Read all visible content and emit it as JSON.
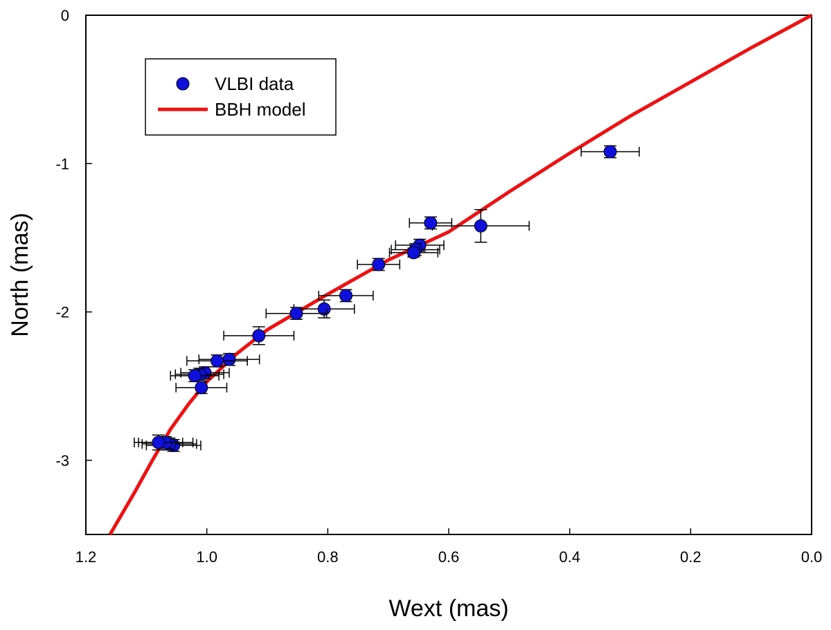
{
  "chart_data": {
    "type": "scatter",
    "title": "",
    "xlabel": "Wext (mas)",
    "ylabel": "North (mas)",
    "xlim": [
      1.2,
      0.0
    ],
    "ylim": [
      -3.5,
      0
    ],
    "x_reversed": true,
    "x_ticks": [
      1.2,
      1.0,
      0.8,
      0.6,
      0.4,
      0.2,
      0.0
    ],
    "x_tick_labels": [
      "1.2",
      "1.0",
      "0.8",
      "0.6",
      "0.4",
      "0.2",
      "0.0"
    ],
    "y_ticks": [
      0,
      -1,
      -2,
      -3
    ],
    "y_tick_labels": [
      "0",
      "-1",
      "-2",
      "-3"
    ],
    "grid": false,
    "legend_position": "top-left",
    "series": [
      {
        "name": "VLBI data",
        "kind": "points_with_errorbars",
        "color": "#1010dd",
        "points": [
          {
            "x": 0.333,
            "y": -0.92,
            "xerr": 0.048,
            "yerr": 0.04
          },
          {
            "x": 0.547,
            "y": -1.42,
            "xerr": 0.08,
            "yerr": 0.11
          },
          {
            "x": 0.63,
            "y": -1.4,
            "xerr": 0.035,
            "yerr": 0.04
          },
          {
            "x": 0.648,
            "y": -1.55,
            "xerr": 0.04,
            "yerr": 0.04
          },
          {
            "x": 0.655,
            "y": -1.58,
            "xerr": 0.04,
            "yerr": 0.04
          },
          {
            "x": 0.658,
            "y": -1.6,
            "xerr": 0.04,
            "yerr": 0.03
          },
          {
            "x": 0.716,
            "y": -1.68,
            "xerr": 0.035,
            "yerr": 0.04
          },
          {
            "x": 0.77,
            "y": -1.89,
            "xerr": 0.045,
            "yerr": 0.04
          },
          {
            "x": 0.806,
            "y": -1.98,
            "xerr": 0.05,
            "yerr": 0.06
          },
          {
            "x": 0.852,
            "y": -2.01,
            "xerr": 0.05,
            "yerr": 0.04
          },
          {
            "x": 0.914,
            "y": -2.16,
            "xerr": 0.058,
            "yerr": 0.06
          },
          {
            "x": 0.963,
            "y": -2.32,
            "xerr": 0.05,
            "yerr": 0.04
          },
          {
            "x": 0.983,
            "y": -2.33,
            "xerr": 0.05,
            "yerr": 0.04
          },
          {
            "x": 1.003,
            "y": -2.41,
            "xerr": 0.04,
            "yerr": 0.04
          },
          {
            "x": 1.012,
            "y": -2.42,
            "xerr": 0.04,
            "yerr": 0.04
          },
          {
            "x": 1.02,
            "y": -2.43,
            "xerr": 0.04,
            "yerr": 0.04
          },
          {
            "x": 1.009,
            "y": -2.51,
            "xerr": 0.042,
            "yerr": 0.04
          },
          {
            "x": 1.055,
            "y": -2.9,
            "xerr": 0.045,
            "yerr": 0.04
          },
          {
            "x": 1.062,
            "y": -2.89,
            "xerr": 0.045,
            "yerr": 0.04
          },
          {
            "x": 1.068,
            "y": -2.88,
            "xerr": 0.045,
            "yerr": 0.04
          },
          {
            "x": 1.08,
            "y": -2.88,
            "xerr": 0.04,
            "yerr": 0.05
          }
        ]
      },
      {
        "name": "BBH model",
        "kind": "line",
        "color": "#ee1111",
        "x": [
          0.0,
          0.1,
          0.2,
          0.3,
          0.4,
          0.5,
          0.6,
          0.7,
          0.8,
          0.9,
          0.95,
          1.0,
          1.03,
          1.06,
          1.09,
          1.12,
          1.16
        ],
        "y": [
          0.0,
          -0.22,
          -0.45,
          -0.68,
          -0.93,
          -1.19,
          -1.46,
          -1.65,
          -1.88,
          -2.12,
          -2.28,
          -2.47,
          -2.62,
          -2.79,
          -3.0,
          -3.22,
          -3.5
        ]
      }
    ]
  }
}
